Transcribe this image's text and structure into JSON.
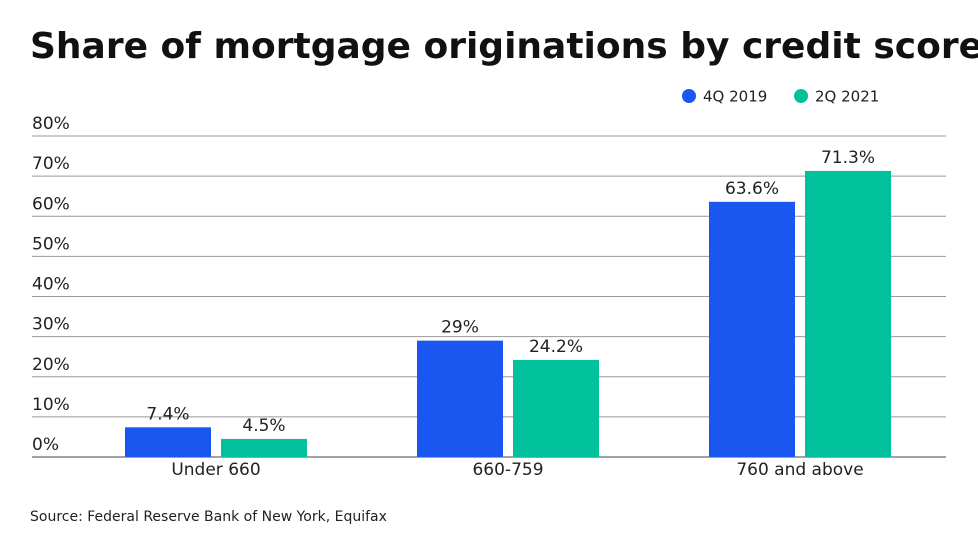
{
  "chart_data": {
    "type": "bar",
    "title": "Share of mortgage originations by credit score",
    "source": "Source: Federal Reserve Bank of New York, Equifax",
    "categories": [
      "Under 660",
      "660-759",
      "760 and above"
    ],
    "series": [
      {
        "name": "4Q 2019",
        "color": "#1a56f0",
        "values": [
          7.4,
          29,
          63.6
        ],
        "value_labels": [
          "7.4%",
          "29%",
          "63.6%"
        ]
      },
      {
        "name": "2Q 2021",
        "color": "#00c19c",
        "values": [
          4.5,
          24.2,
          71.3
        ],
        "value_labels": [
          "4.5%",
          "24.2%",
          "71.3%"
        ]
      }
    ],
    "ylim": [
      0,
      80
    ],
    "yticks": [
      {
        "value": 0,
        "label": "0%"
      },
      {
        "value": 10,
        "label": "10%"
      },
      {
        "value": 20,
        "label": "20%"
      },
      {
        "value": 30,
        "label": "30%"
      },
      {
        "value": 40,
        "label": "40%"
      },
      {
        "value": 50,
        "label": "50%"
      },
      {
        "value": 60,
        "label": "60%"
      },
      {
        "value": 70,
        "label": "70%"
      },
      {
        "value": 80,
        "label": "80%"
      }
    ],
    "grid": true,
    "legend": "top-right"
  }
}
